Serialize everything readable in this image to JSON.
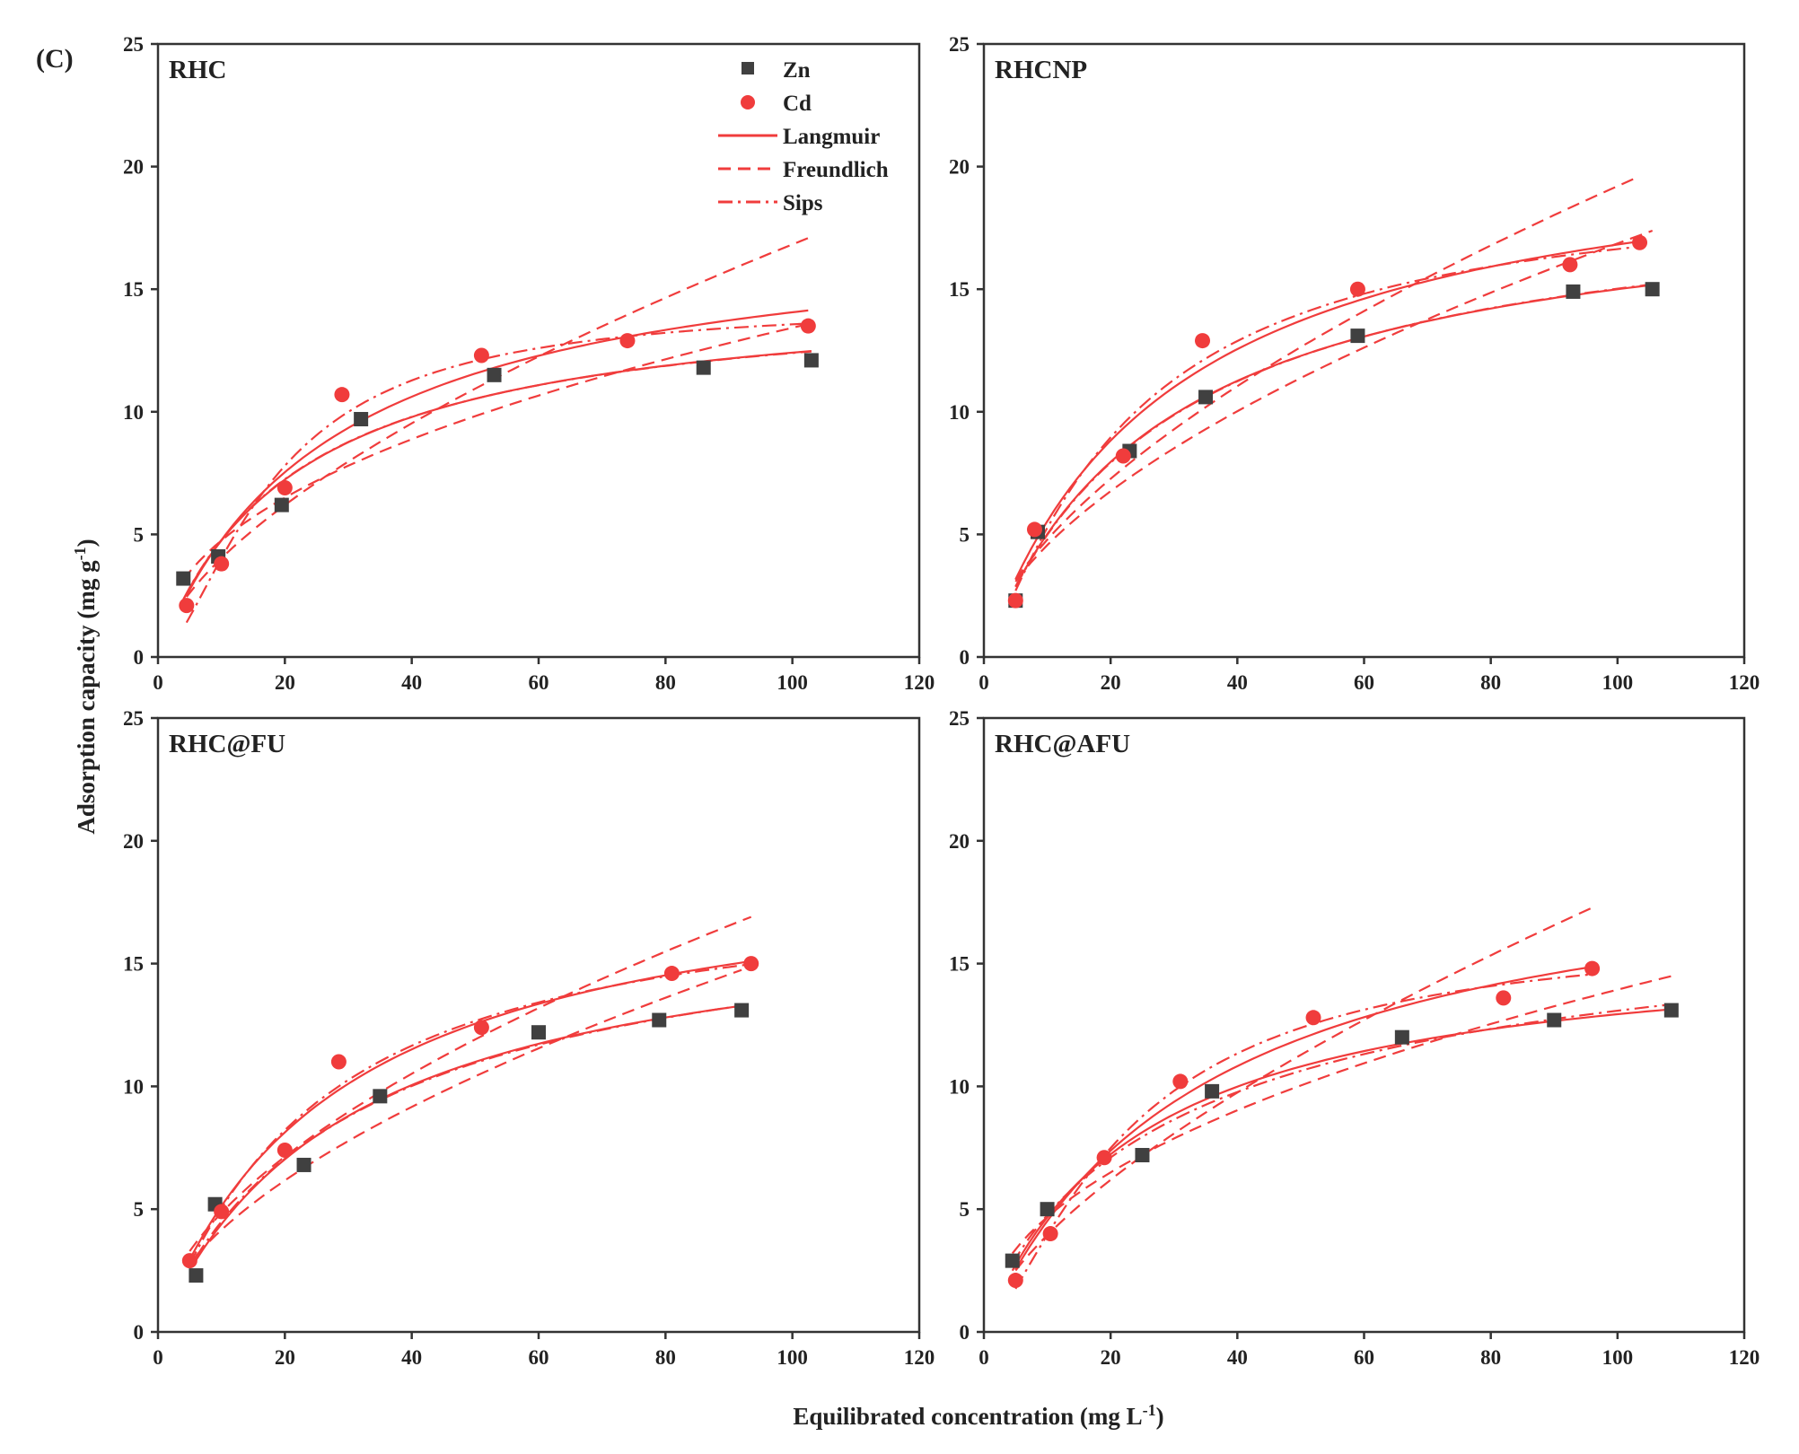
{
  "figure_label": "(C)",
  "ylabel": "Adsorption capacity (mg g",
  "ylabel_sup": "-1",
  "ylabel_close": ")",
  "xlabel": "Equilibrated concentration (mg L",
  "xlabel_sup": "-1",
  "xlabel_close": ")",
  "legend": {
    "placement": "top-right of first panel",
    "entries": [
      {
        "label": "Zn",
        "kind": "square-marker",
        "color": "#404040"
      },
      {
        "label": "Cd",
        "kind": "circle-marker",
        "color": "#f03c3c"
      },
      {
        "label": "Langmuir",
        "kind": "solid-line",
        "color": "#f03c3c"
      },
      {
        "label": "Freundlich",
        "kind": "dashed-line",
        "color": "#f03c3c"
      },
      {
        "label": "Sips",
        "kind": "dash-dot-line",
        "color": "#f03c3c"
      }
    ]
  },
  "chart_data": [
    {
      "type": "scatter",
      "title": "RHC",
      "xlim": [
        0,
        120
      ],
      "ylim": [
        0,
        25
      ],
      "xticks": [
        0,
        20,
        40,
        60,
        80,
        100,
        120
      ],
      "yticks": [
        0,
        5,
        10,
        15,
        20,
        25
      ],
      "grid": false,
      "series": [
        {
          "name": "Zn",
          "x": [
            4,
            9.5,
            19.5,
            32,
            53,
            86,
            103
          ],
          "y": [
            3.2,
            4.1,
            6.2,
            9.7,
            11.5,
            11.8,
            12.1
          ]
        },
        {
          "name": "Cd",
          "x": [
            4.5,
            10,
            20,
            29,
            51,
            74,
            102.5
          ],
          "y": [
            2.1,
            3.8,
            6.9,
            10.7,
            12.3,
            12.9,
            13.5
          ]
        }
      ]
    },
    {
      "type": "scatter",
      "title": "RHCNP",
      "xlim": [
        0,
        120
      ],
      "ylim": [
        0,
        25
      ],
      "xticks": [
        0,
        20,
        40,
        60,
        80,
        100,
        120
      ],
      "yticks": [
        0,
        5,
        10,
        15,
        20,
        25
      ],
      "grid": false,
      "series": [
        {
          "name": "Zn",
          "x": [
            5,
            8.5,
            23,
            35,
            59,
            93,
            105.5
          ],
          "y": [
            2.3,
            5.1,
            8.4,
            10.6,
            13.1,
            14.9,
            15.0
          ]
        },
        {
          "name": "Cd",
          "x": [
            5,
            8,
            22,
            34.5,
            59,
            92.5,
            103.5
          ],
          "y": [
            2.3,
            5.2,
            8.2,
            12.9,
            15.0,
            16.0,
            16.9
          ]
        }
      ]
    },
    {
      "type": "scatter",
      "title": "RHC@FU",
      "xlim": [
        0,
        120
      ],
      "ylim": [
        0,
        25
      ],
      "xticks": [
        0,
        20,
        40,
        60,
        80,
        100,
        120
      ],
      "yticks": [
        0,
        5,
        10,
        15,
        20,
        25
      ],
      "grid": false,
      "series": [
        {
          "name": "Zn",
          "x": [
            6,
            9,
            23,
            35,
            60,
            79,
            92
          ],
          "y": [
            2.3,
            5.2,
            6.8,
            9.6,
            12.2,
            12.7,
            13.1
          ]
        },
        {
          "name": "Cd",
          "x": [
            5,
            10,
            20,
            28.5,
            51,
            81,
            93.5
          ],
          "y": [
            2.9,
            4.9,
            7.4,
            11.0,
            12.4,
            14.6,
            15.0
          ]
        }
      ]
    },
    {
      "type": "scatter",
      "title": "RHC@AFU",
      "xlim": [
        0,
        120
      ],
      "ylim": [
        0,
        25
      ],
      "xticks": [
        0,
        20,
        40,
        60,
        80,
        100,
        120
      ],
      "yticks": [
        0,
        5,
        10,
        15,
        20,
        25
      ],
      "grid": false,
      "series": [
        {
          "name": "Zn",
          "x": [
            4.5,
            10,
            25,
            36,
            66,
            90,
            108.5
          ],
          "y": [
            2.9,
            5.0,
            7.2,
            9.8,
            12.0,
            12.7,
            13.1
          ]
        },
        {
          "name": "Cd",
          "x": [
            5,
            10.5,
            19,
            31,
            52,
            82,
            96
          ],
          "y": [
            2.1,
            4.0,
            7.1,
            10.2,
            12.8,
            13.6,
            14.8
          ]
        }
      ]
    }
  ]
}
